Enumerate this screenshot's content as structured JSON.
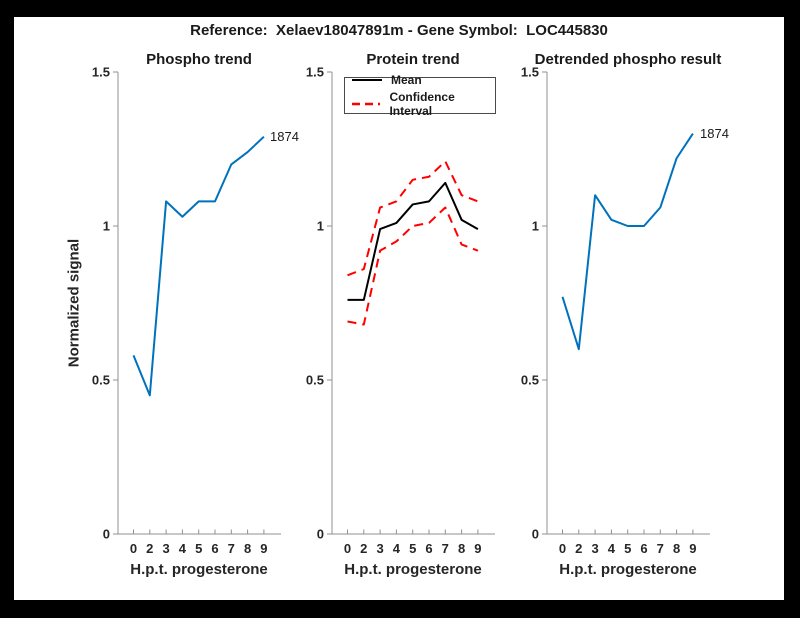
{
  "header": {
    "title": "Reference:  Xelaev18047891m - Gene Symbol:  LOC445830"
  },
  "shared": {
    "xlabel": "H.p.t. progesterone",
    "ylabel": "Normalized signal",
    "x_tick_labels": [
      "0",
      "2",
      "3",
      "4",
      "5",
      "6",
      "7",
      "8",
      "9"
    ],
    "y_tick_labels": [
      "0",
      "0.5",
      "1",
      "1.5"
    ],
    "y_tick_values": [
      0,
      0.5,
      1,
      1.5
    ],
    "ylim": [
      0,
      1.5
    ],
    "grid": "off",
    "colors": {
      "line_blue": "#0072BD",
      "ci_red": "#FF0000",
      "mean_black": "#000000",
      "axis_gray": "#909090",
      "tick_text": "#262626"
    }
  },
  "chart_data": [
    {
      "type": "line",
      "title": "Phospho trend",
      "xlabel": "H.p.t. progesterone",
      "ylabel": "Normalized signal",
      "categories": [
        "0",
        "2",
        "3",
        "4",
        "5",
        "6",
        "7",
        "8",
        "9"
      ],
      "ylim": [
        0,
        1.5
      ],
      "end_label": "1874",
      "series": [
        {
          "name": "1874",
          "color": "#0072BD",
          "dash": "solid",
          "values": [
            0.58,
            0.45,
            1.08,
            1.03,
            1.08,
            1.08,
            1.2,
            1.24,
            1.29
          ]
        }
      ]
    },
    {
      "type": "line",
      "title": "Protein trend",
      "xlabel": "H.p.t. progesterone",
      "categories": [
        "0",
        "2",
        "3",
        "4",
        "5",
        "6",
        "7",
        "8",
        "9"
      ],
      "ylim": [
        0,
        1.5
      ],
      "legend_position": "top-left-inside",
      "legend": [
        {
          "label": "Mean",
          "color": "#000000",
          "dash": "solid"
        },
        {
          "label": "Confidence Interval",
          "color": "#FF0000",
          "dash": "dashed"
        }
      ],
      "series": [
        {
          "name": "Mean",
          "color": "#000000",
          "dash": "solid",
          "values": [
            0.76,
            0.76,
            0.99,
            1.01,
            1.07,
            1.08,
            1.14,
            1.02,
            0.99
          ]
        },
        {
          "name": "Confidence Interval upper",
          "color": "#FF0000",
          "dash": "dashed",
          "values": [
            0.84,
            0.86,
            1.06,
            1.08,
            1.15,
            1.16,
            1.21,
            1.1,
            1.08
          ]
        },
        {
          "name": "Confidence Interval lower",
          "color": "#FF0000",
          "dash": "dashed",
          "values": [
            0.69,
            0.68,
            0.92,
            0.95,
            1.0,
            1.01,
            1.06,
            0.94,
            0.92
          ]
        }
      ]
    },
    {
      "type": "line",
      "title": "Detrended phospho result",
      "xlabel": "H.p.t. progesterone",
      "categories": [
        "0",
        "2",
        "3",
        "4",
        "5",
        "6",
        "7",
        "8",
        "9"
      ],
      "ylim": [
        0,
        1.5
      ],
      "end_label": "1874",
      "series": [
        {
          "name": "1874",
          "color": "#0072BD",
          "dash": "solid",
          "values": [
            0.77,
            0.6,
            1.1,
            1.02,
            1.0,
            1.0,
            1.06,
            1.22,
            1.3
          ]
        }
      ]
    }
  ]
}
